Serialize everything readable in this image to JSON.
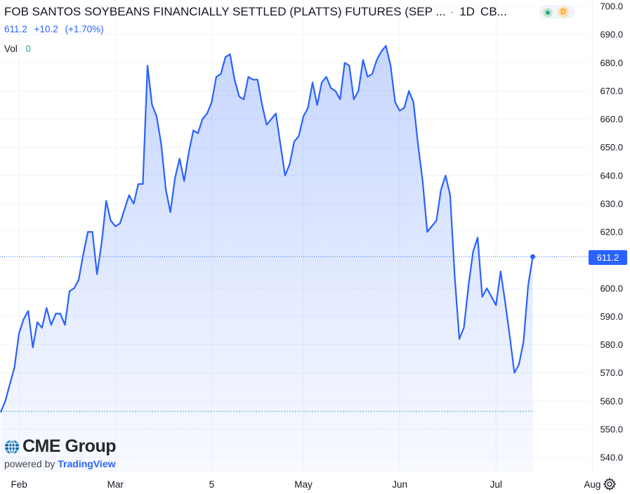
{
  "header": {
    "title": "FOB SANTOS SOYBEANS FINANCIALLY SETTLED (PLATTS) FUTURES (SEP ...",
    "separator": "·",
    "timeframe": "1D",
    "exchange": "CB..."
  },
  "quote": {
    "last": "611.2",
    "change": "+10.2",
    "change_pct": "(+1.70%)",
    "color": "#2962ff"
  },
  "volume": {
    "label": "Vol",
    "value": "0",
    "color": "#26a69a"
  },
  "status": {
    "market_icon": "green-dot-icon",
    "delay_badge": "D"
  },
  "branding": {
    "logo_text": "CME Group",
    "powered_by": "powered by",
    "platform": "TradingView"
  },
  "price_label": "611.2",
  "settings_icon": "gear-icon",
  "chart_data": {
    "type": "area",
    "line_color": "#2962ff",
    "ylim": [
      540,
      700
    ],
    "y_ticks": [
      "700.0",
      "690.0",
      "680.0",
      "670.0",
      "660.0",
      "650.0",
      "640.0",
      "630.0",
      "620.0",
      "610.0",
      "600.0",
      "590.0",
      "580.0",
      "570.0",
      "560.0",
      "550.0",
      "540.0"
    ],
    "x_tick_labels": [
      "Feb",
      "Mar",
      "5",
      "May",
      "Jun",
      "Jul",
      "Aug"
    ],
    "x_tick_index": [
      4,
      25,
      46,
      66,
      87,
      108,
      129
    ],
    "reference_line": 556.4,
    "last_value": 611.2,
    "values": [
      556,
      560,
      566,
      572,
      584,
      589,
      592,
      579,
      588,
      586,
      593,
      587,
      591,
      591,
      587,
      599,
      600,
      603,
      612,
      620,
      620,
      605,
      616,
      631,
      624,
      622,
      623,
      628,
      633,
      630,
      637,
      637,
      679,
      665,
      661,
      651,
      635,
      627,
      639,
      646,
      638,
      648,
      656,
      655,
      660,
      662,
      666,
      675,
      676,
      682,
      683,
      674,
      668,
      667,
      675,
      674,
      674,
      665,
      658,
      660,
      662,
      651,
      640,
      644,
      652,
      654,
      661,
      664,
      673,
      665,
      673,
      675,
      671,
      670,
      667,
      680,
      679,
      667,
      670,
      681,
      675,
      676,
      681,
      684,
      686,
      679,
      666,
      663,
      664,
      670,
      666,
      651,
      638,
      620,
      622,
      624,
      635,
      640,
      633,
      604,
      582,
      586,
      601,
      613,
      618,
      597,
      600,
      597,
      594,
      606,
      595,
      583,
      570,
      573,
      581,
      601,
      611.2
    ]
  }
}
